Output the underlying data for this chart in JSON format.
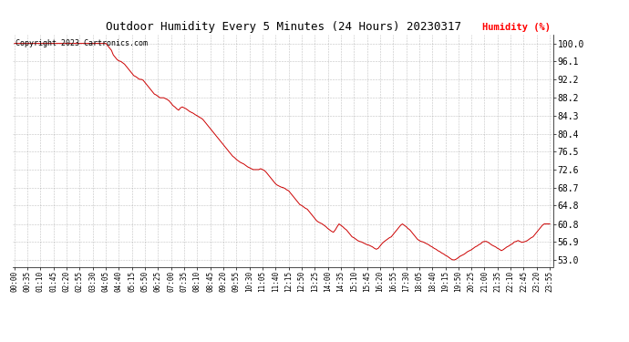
{
  "title": "Outdoor Humidity Every 5 Minutes (24 Hours) 20230317",
  "copyright_text": "Copyright 2023 Cartronics.com",
  "ylabel": "Humidity (%)",
  "line_color": "#cc0000",
  "background_color": "#ffffff",
  "grid_color": "#999999",
  "yticks": [
    53.0,
    56.9,
    60.8,
    64.8,
    68.7,
    72.6,
    76.5,
    80.4,
    84.3,
    88.2,
    92.2,
    96.1,
    100.0
  ],
  "ylim": [
    51.5,
    102.0
  ],
  "humidity_values": [
    100.0,
    100.0,
    100.0,
    100.0,
    100.0,
    100.0,
    100.0,
    100.0,
    100.0,
    100.0,
    100.0,
    100.0,
    100.0,
    100.0,
    100.0,
    100.0,
    100.0,
    100.0,
    100.0,
    100.0,
    100.0,
    100.0,
    100.0,
    100.0,
    100.0,
    100.0,
    100.0,
    100.0,
    100.0,
    100.0,
    100.0,
    100.0,
    100.0,
    100.0,
    100.0,
    100.0,
    100.0,
    100.0,
    100.0,
    100.0,
    100.0,
    100.0,
    100.0,
    100.0,
    100.0,
    100.0,
    100.0,
    100.0,
    100.0,
    100.0,
    99.5,
    99.0,
    98.5,
    97.5,
    97.0,
    96.5,
    96.2,
    96.1,
    95.8,
    95.5,
    95.0,
    94.5,
    94.0,
    93.5,
    93.0,
    92.8,
    92.5,
    92.2,
    92.2,
    92.0,
    91.5,
    91.0,
    90.5,
    90.0,
    89.5,
    89.0,
    88.8,
    88.5,
    88.2,
    88.2,
    88.2,
    88.0,
    87.8,
    87.5,
    87.0,
    86.5,
    86.2,
    85.8,
    85.5,
    86.0,
    86.2,
    86.0,
    85.8,
    85.5,
    85.2,
    85.0,
    84.8,
    84.5,
    84.3,
    84.0,
    83.8,
    83.5,
    83.0,
    82.5,
    82.0,
    81.5,
    81.0,
    80.5,
    80.0,
    79.5,
    79.0,
    78.5,
    78.0,
    77.5,
    77.0,
    76.5,
    76.0,
    75.5,
    75.2,
    74.8,
    74.5,
    74.2,
    74.0,
    73.8,
    73.5,
    73.2,
    73.0,
    72.8,
    72.6,
    72.6,
    72.6,
    72.6,
    72.8,
    72.6,
    72.4,
    72.0,
    71.5,
    71.0,
    70.5,
    70.0,
    69.5,
    69.2,
    69.0,
    68.8,
    68.7,
    68.5,
    68.2,
    68.0,
    67.5,
    67.0,
    66.5,
    66.0,
    65.5,
    65.0,
    64.8,
    64.5,
    64.2,
    64.0,
    63.5,
    63.0,
    62.5,
    62.0,
    61.5,
    61.2,
    61.0,
    60.8,
    60.5,
    60.2,
    59.8,
    59.5,
    59.2,
    59.0,
    59.5,
    60.2,
    60.8,
    60.5,
    60.2,
    59.8,
    59.5,
    59.0,
    58.5,
    58.0,
    57.8,
    57.5,
    57.2,
    57.0,
    56.9,
    56.7,
    56.5,
    56.3,
    56.2,
    56.0,
    55.8,
    55.5,
    55.3,
    55.5,
    56.0,
    56.5,
    56.9,
    57.2,
    57.5,
    57.8,
    58.0,
    58.5,
    59.0,
    59.5,
    60.0,
    60.5,
    60.8,
    60.5,
    60.2,
    59.8,
    59.5,
    59.0,
    58.5,
    58.0,
    57.5,
    57.2,
    57.0,
    56.9,
    56.7,
    56.5,
    56.3,
    56.0,
    55.8,
    55.5,
    55.3,
    55.0,
    54.8,
    54.5,
    54.3,
    54.0,
    53.8,
    53.5,
    53.2,
    53.0,
    53.0,
    53.2,
    53.5,
    53.8,
    54.0,
    54.2,
    54.5,
    54.8,
    55.0,
    55.2,
    55.5,
    55.8,
    56.0,
    56.3,
    56.5,
    56.9,
    57.0,
    57.0,
    56.8,
    56.5,
    56.2,
    56.0,
    55.8,
    55.5,
    55.3,
    55.0,
    55.2,
    55.5,
    55.8,
    56.0,
    56.3,
    56.5,
    56.9,
    57.0,
    57.2,
    57.0,
    56.8,
    56.9,
    57.0,
    57.2,
    57.5,
    57.8,
    58.0,
    58.5,
    59.0,
    59.5,
    60.0,
    60.5,
    60.8,
    60.8,
    60.8,
    60.8
  ],
  "xlim_start": -1,
  "xlim_end": 289,
  "title_fontsize": 9,
  "copyright_fontsize": 6,
  "ylabel_fontsize": 7.5,
  "ytick_fontsize": 7,
  "xtick_fontsize": 5.5
}
